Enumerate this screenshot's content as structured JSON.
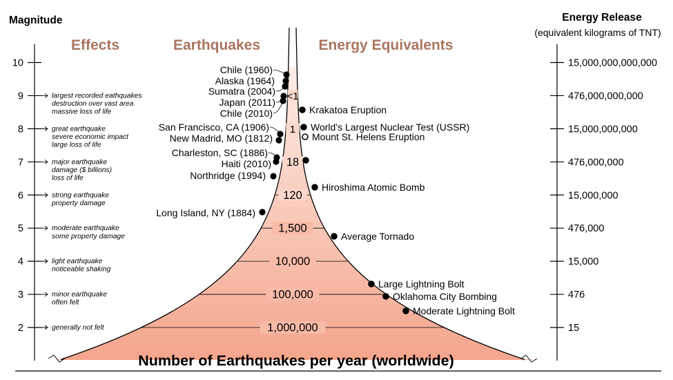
{
  "left_axis": {
    "title": "Magnitude",
    "ticks": [
      "10",
      "9",
      "8",
      "7",
      "6",
      "5",
      "4",
      "3",
      "2"
    ]
  },
  "right_axis": {
    "title": "Energy Release",
    "subtitle": "(equivalent kilograms of TNT)",
    "ticks": [
      "15,000,000,000,000",
      "476,000,000,000",
      "15,000,000,000",
      "476,000,000",
      "15,000,000",
      "476,000",
      "15,000",
      "476",
      "15"
    ]
  },
  "headers": {
    "effects": "Effects",
    "earthquakes": "Earthquakes",
    "energy": "Energy Equivalents"
  },
  "effects": [
    {
      "magnitude": 9,
      "lines": [
        "largest recorded eathquakes",
        "destruction over vast area",
        "massive loss of life"
      ]
    },
    {
      "magnitude": 8,
      "lines": [
        "great earthquake",
        "severe economic impact",
        "large loss of life"
      ]
    },
    {
      "magnitude": 7,
      "lines": [
        "major earthquake",
        "damage ($ billions)",
        "loss of life"
      ]
    },
    {
      "magnitude": 6,
      "lines": [
        "strong earthquake",
        "property damage"
      ]
    },
    {
      "magnitude": 5,
      "lines": [
        "moderate earthquake",
        "some property damage"
      ]
    },
    {
      "magnitude": 4,
      "lines": [
        "light earthquake",
        "noticeable shaking"
      ]
    },
    {
      "magnitude": 3,
      "lines": [
        "minor earthquake",
        "often felt"
      ]
    },
    {
      "magnitude": 2,
      "lines": [
        "generally not felt"
      ]
    }
  ],
  "earthquakes": [
    {
      "label": "Chile (1960)",
      "magnitude": 9.5
    },
    {
      "label": "Alaska (1964)",
      "magnitude": 9.2
    },
    {
      "label": "Sumatra (2004)",
      "magnitude": 9.1
    },
    {
      "label": "Japan (2011)",
      "magnitude": 9.0
    },
    {
      "label": "Chile (2010)",
      "magnitude": 8.8
    },
    {
      "label": "San Francisco, CA (1906)",
      "magnitude": 7.9
    },
    {
      "label": "New Madrid, MO (1812)",
      "magnitude": 7.7
    },
    {
      "label": "Charleston, SC (1886)",
      "magnitude": 7.3
    },
    {
      "label": "Haiti (2010)",
      "magnitude": 7.0
    },
    {
      "label": "Northridge (1994)",
      "magnitude": 6.7
    },
    {
      "label": "Long Island, NY (1884)",
      "magnitude": 5.5
    }
  ],
  "energy_equivalents": [
    {
      "label": "Krakatoa Eruption",
      "magnitude": 8.6,
      "hollow": false
    },
    {
      "label": "World’s Largest Nuclear Test (USSR)",
      "magnitude": 8.0,
      "hollow": false
    },
    {
      "label": "Mount St. Helens Eruption",
      "magnitude": 7.8,
      "hollow": true
    },
    {
      "label": "",
      "magnitude": 7.0,
      "hollow": false
    },
    {
      "label": "Hiroshima Atomic Bomb",
      "magnitude": 6.2,
      "hollow": false
    },
    {
      "label": "Average Tornado",
      "magnitude": 4.8,
      "hollow": false
    },
    {
      "label": "Large Lightning Bolt",
      "magnitude": 3.3,
      "hollow": false
    },
    {
      "label": "Oklahoma City Bombing",
      "magnitude": 2.9,
      "hollow": false
    },
    {
      "label": "Moderate Lightning Bolt",
      "magnitude": 2.5,
      "hollow": false
    }
  ],
  "frequency_labels": [
    {
      "label": "<1",
      "magnitude": 9
    },
    {
      "label": "1",
      "magnitude": 8
    },
    {
      "label": "18",
      "magnitude": 7
    },
    {
      "label": "120",
      "magnitude": 6
    },
    {
      "label": "1,500",
      "magnitude": 5
    },
    {
      "label": "10,000",
      "magnitude": 4
    },
    {
      "label": "100,000",
      "magnitude": 3
    },
    {
      "label": "1,000,000",
      "magnitude": 2
    }
  ],
  "footer": "Number of Earthquakes per year (worldwide)",
  "colors": {
    "header": "#a97560",
    "funnel_top": "#fdeee8",
    "funnel_bottom": "#f4a58c",
    "ink": "#000000"
  }
}
